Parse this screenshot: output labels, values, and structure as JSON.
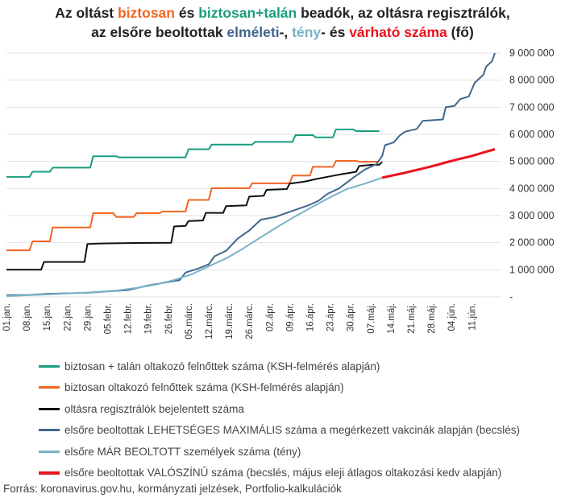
{
  "title": {
    "line1": [
      {
        "text": "Az oltást ",
        "color": "#222222"
      },
      {
        "text": "biztosan",
        "color": "#f26522"
      },
      {
        "text": " és ",
        "color": "#222222"
      },
      {
        "text": "biztosan+talán",
        "color": "#1a9e7f"
      },
      {
        "text": " beadók, az oltásra regisztrálók,",
        "color": "#222222"
      }
    ],
    "line2": [
      {
        "text": "az elsőre beoltottak ",
        "color": "#222222"
      },
      {
        "text": "elméleti",
        "color": "#41668f"
      },
      {
        "text": "-, ",
        "color": "#222222"
      },
      {
        "text": "tény",
        "color": "#7ab3c6"
      },
      {
        "text": "- és ",
        "color": "#222222"
      },
      {
        "text": "várható száma",
        "color": "#e8141d"
      },
      {
        "text": " (fő)",
        "color": "#222222"
      }
    ]
  },
  "source": "Forrás: koronavirus.gov.hu, kormányzati jelzések, Portfolio-kalkulációk",
  "chart_data": {
    "type": "line",
    "x_ticks": [
      "01.jan.",
      "08.jan.",
      "15.jan.",
      "22.jan.",
      "29.jan.",
      "05.febr.",
      "12.febr.",
      "19.febr.",
      "26.febr.",
      "05.márc.",
      "12.márc.",
      "19.márc.",
      "26.márc.",
      "02.ápr.",
      "09.ápr.",
      "16.ápr.",
      "23.ápr.",
      "30.ápr.",
      "07.máj.",
      "14.máj.",
      "21.máj.",
      "28.máj.",
      "04.jún.",
      "11.jún."
    ],
    "y_ticks": [
      "-",
      "1 000 000",
      "2 000 000",
      "3 000 000",
      "4 000 000",
      "5 000 000",
      "6 000 000",
      "7 000 000",
      "8 000 000",
      "9 000 000"
    ],
    "ylim": [
      0,
      9000000
    ],
    "x_range_days": [
      0,
      169
    ],
    "grid": "horizontal",
    "legend_position": "bottom",
    "series": [
      {
        "name": "biztosan + talán oltakozó felnőttek száma (KSH-felmérés alapján)",
        "color": "#1a9e7f",
        "points": [
          [
            0,
            4430000
          ],
          [
            8,
            4430000
          ],
          [
            9,
            4620000
          ],
          [
            15,
            4620000
          ],
          [
            16,
            4770000
          ],
          [
            29,
            4770000
          ],
          [
            30,
            5190000
          ],
          [
            38,
            5190000
          ],
          [
            39,
            5150000
          ],
          [
            62,
            5150000
          ],
          [
            63,
            5450000
          ],
          [
            70,
            5450000
          ],
          [
            71,
            5620000
          ],
          [
            85,
            5620000
          ],
          [
            86,
            5720000
          ],
          [
            99,
            5720000
          ],
          [
            100,
            5970000
          ],
          [
            106,
            5970000
          ],
          [
            107,
            5890000
          ],
          [
            113,
            5890000
          ],
          [
            114,
            6180000
          ],
          [
            120,
            6180000
          ],
          [
            121,
            6120000
          ],
          [
            129,
            6120000
          ]
        ]
      },
      {
        "name": "biztosan oltakozó felnőttek száma (KSH-felmérés alapján)",
        "color": "#f26522",
        "points": [
          [
            0,
            1720000
          ],
          [
            8,
            1720000
          ],
          [
            9,
            2050000
          ],
          [
            15,
            2050000
          ],
          [
            16,
            2560000
          ],
          [
            29,
            2560000
          ],
          [
            30,
            3090000
          ],
          [
            37,
            3090000
          ],
          [
            38,
            2950000
          ],
          [
            44,
            2950000
          ],
          [
            45,
            3090000
          ],
          [
            53,
            3090000
          ],
          [
            54,
            3150000
          ],
          [
            62,
            3150000
          ],
          [
            63,
            3580000
          ],
          [
            70,
            3580000
          ],
          [
            71,
            4010000
          ],
          [
            84,
            4010000
          ],
          [
            85,
            4190000
          ],
          [
            98,
            4190000
          ],
          [
            99,
            4480000
          ],
          [
            105,
            4480000
          ],
          [
            106,
            4800000
          ],
          [
            113,
            4800000
          ],
          [
            114,
            5020000
          ],
          [
            121,
            5020000
          ],
          [
            122,
            4990000
          ],
          [
            129,
            4990000
          ]
        ]
      },
      {
        "name": "oltásra regisztrálók bejelentett száma",
        "color": "#111111",
        "points": [
          [
            0,
            1000000
          ],
          [
            12,
            1000000
          ],
          [
            13,
            1290000
          ],
          [
            27,
            1290000
          ],
          [
            28,
            1950000
          ],
          [
            32,
            1970000
          ],
          [
            45,
            1990000
          ],
          [
            57,
            2000000
          ],
          [
            58,
            2600000
          ],
          [
            62,
            2620000
          ],
          [
            63,
            2800000
          ],
          [
            68,
            2820000
          ],
          [
            69,
            3100000
          ],
          [
            75,
            3100000
          ],
          [
            76,
            3350000
          ],
          [
            83,
            3380000
          ],
          [
            84,
            3700000
          ],
          [
            89,
            3730000
          ],
          [
            90,
            3950000
          ],
          [
            97,
            3980000
          ],
          [
            98,
            4180000
          ],
          [
            103,
            4250000
          ],
          [
            107,
            4350000
          ],
          [
            112,
            4450000
          ],
          [
            116,
            4530000
          ],
          [
            119,
            4580000
          ],
          [
            121,
            4620000
          ],
          [
            122,
            4830000
          ],
          [
            126,
            4870000
          ],
          [
            129,
            4880000
          ],
          [
            130,
            4980000
          ]
        ]
      },
      {
        "name": "elsőre beoltottak LEHETSÉGES MAXIMÁLIS száma a megérkezett vakcinák alapján (becslés)",
        "color": "#41668f",
        "points": [
          [
            0,
            60000
          ],
          [
            8,
            70000
          ],
          [
            14,
            110000
          ],
          [
            28,
            150000
          ],
          [
            42,
            250000
          ],
          [
            49,
            420000
          ],
          [
            55,
            530000
          ],
          [
            60,
            620000
          ],
          [
            62,
            900000
          ],
          [
            66,
            1030000
          ],
          [
            70,
            1200000
          ],
          [
            72,
            1500000
          ],
          [
            76,
            1700000
          ],
          [
            80,
            2150000
          ],
          [
            84,
            2450000
          ],
          [
            88,
            2850000
          ],
          [
            93,
            2950000
          ],
          [
            97,
            3100000
          ],
          [
            101,
            3250000
          ],
          [
            105,
            3400000
          ],
          [
            108,
            3550000
          ],
          [
            111,
            3800000
          ],
          [
            115,
            4000000
          ],
          [
            120,
            4400000
          ],
          [
            124,
            4700000
          ],
          [
            128,
            4900000
          ],
          [
            130,
            5200000
          ],
          [
            131,
            5600000
          ],
          [
            134,
            5700000
          ],
          [
            136,
            5950000
          ],
          [
            138,
            6100000
          ],
          [
            142,
            6200000
          ],
          [
            144,
            6500000
          ],
          [
            151,
            6550000
          ],
          [
            152,
            7000000
          ],
          [
            155,
            7050000
          ],
          [
            157,
            7300000
          ],
          [
            160,
            7400000
          ],
          [
            162,
            7900000
          ],
          [
            165,
            8200000
          ],
          [
            166,
            8500000
          ],
          [
            168,
            8700000
          ],
          [
            169,
            9000000
          ]
        ]
      },
      {
        "name": "elsőre MÁR BEOLTOTT személyek száma (tény)",
        "color": "#7ab3c6",
        "points": [
          [
            0,
            30000
          ],
          [
            14,
            90000
          ],
          [
            28,
            160000
          ],
          [
            38,
            230000
          ],
          [
            45,
            330000
          ],
          [
            52,
            460000
          ],
          [
            58,
            620000
          ],
          [
            64,
            830000
          ],
          [
            70,
            1130000
          ],
          [
            76,
            1420000
          ],
          [
            82,
            1790000
          ],
          [
            88,
            2200000
          ],
          [
            94,
            2600000
          ],
          [
            100,
            2980000
          ],
          [
            106,
            3330000
          ],
          [
            112,
            3680000
          ],
          [
            118,
            3990000
          ],
          [
            124,
            4180000
          ],
          [
            130,
            4400000
          ]
        ]
      },
      {
        "name": "elsőre beoltottak VALÓSZÍNŰ száma (becslés, május eleji átlagos oltakozási kedv alapján)",
        "color": "#e8141d",
        "points": [
          [
            130,
            4400000
          ],
          [
            133,
            4470000
          ],
          [
            137,
            4560000
          ],
          [
            141,
            4660000
          ],
          [
            145,
            4760000
          ],
          [
            149,
            4870000
          ],
          [
            153,
            4990000
          ],
          [
            157,
            5100000
          ],
          [
            161,
            5200000
          ],
          [
            165,
            5330000
          ],
          [
            169,
            5450000
          ]
        ]
      }
    ]
  }
}
